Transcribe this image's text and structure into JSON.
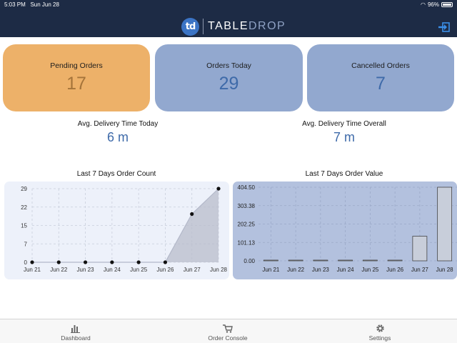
{
  "status_bar": {
    "time": "5:03 PM",
    "date": "Sun Jun 28",
    "battery": "96%"
  },
  "header": {
    "logo_text": "td",
    "brand_part1": "TABLE",
    "brand_part2": "DROP",
    "logout_icon": "logout-icon"
  },
  "stats": {
    "pending": {
      "label": "Pending Orders",
      "value": "17"
    },
    "today": {
      "label": "Orders Today",
      "value": "29"
    },
    "cancelled": {
      "label": "Cancelled Orders",
      "value": "7"
    }
  },
  "delivery": {
    "today": {
      "label": "Avg. Delivery Time Today",
      "value": "6 m"
    },
    "overall": {
      "label": "Avg. Delivery Time Overall",
      "value": "7 m"
    }
  },
  "colors": {
    "header": "#1d2b45",
    "pending": "#edb169",
    "stat": "#92a8cf",
    "value_blue": "#3e6aa9"
  },
  "chart_data": [
    {
      "type": "area",
      "title": "Last 7 Days Order Count",
      "categories": [
        "Jun 21",
        "Jun 22",
        "Jun 23",
        "Jun 24",
        "Jun 25",
        "Jun 26",
        "Jun 27",
        "Jun 28"
      ],
      "values": [
        0,
        0,
        0,
        0,
        0,
        0,
        19,
        29
      ],
      "y_ticks": [
        "0",
        "7",
        "15",
        "22",
        "29"
      ],
      "ylim": [
        0,
        29
      ],
      "grid": true
    },
    {
      "type": "bar",
      "title": "Last 7 Days Order Value",
      "categories": [
        "Jun 21",
        "Jun 22",
        "Jun 23",
        "Jun 24",
        "Jun 25",
        "Jun 26",
        "Jun 27",
        "Jun 28"
      ],
      "values": [
        0,
        0,
        0,
        0,
        0,
        0,
        135,
        404.5
      ],
      "y_ticks": [
        "0.00",
        "101.13",
        "202.25",
        "303.38",
        "404.50"
      ],
      "ylim": [
        0,
        404.5
      ],
      "grid": true
    }
  ],
  "tabs": [
    {
      "label": "Dashboard",
      "icon": "bar-chart-icon"
    },
    {
      "label": "Order Console",
      "icon": "cart-icon"
    },
    {
      "label": "Settings",
      "icon": "gear-icon"
    }
  ]
}
